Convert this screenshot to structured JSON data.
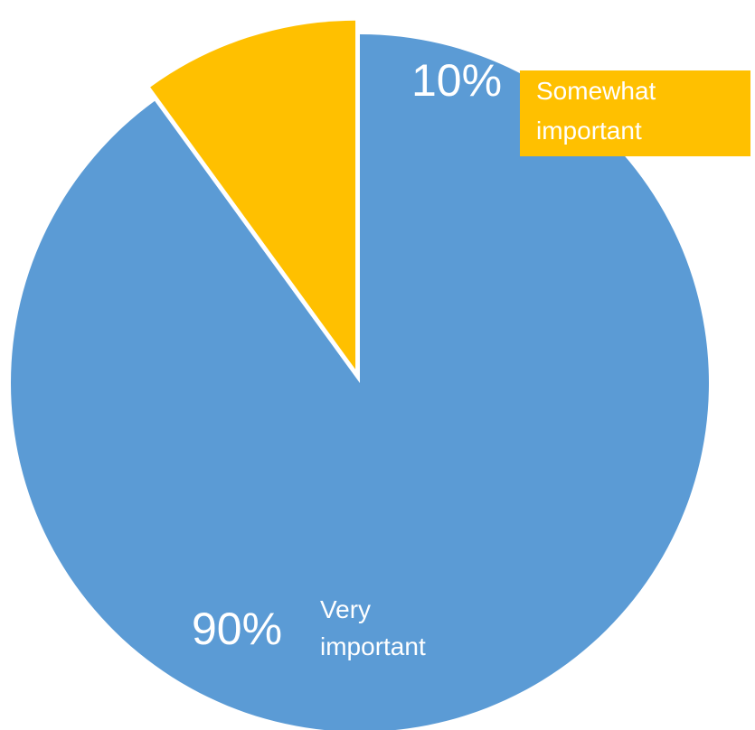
{
  "chart_data": {
    "type": "pie",
    "start_angle_deg": 0,
    "direction": "clockwise",
    "exploded_slice": "Somewhat important",
    "slices": [
      {
        "label": "Very important",
        "value": 90,
        "percent_label": "90%",
        "category_label": [
          "Very",
          "important"
        ],
        "color": "#5B9BD5",
        "label_color": "#ffffff"
      },
      {
        "label": "Somewhat important",
        "value": 10,
        "percent_label": "10%",
        "category_label": [
          "Somewhat",
          "important"
        ],
        "color": "#FFC000",
        "label_color": "#ffffff"
      }
    ]
  }
}
